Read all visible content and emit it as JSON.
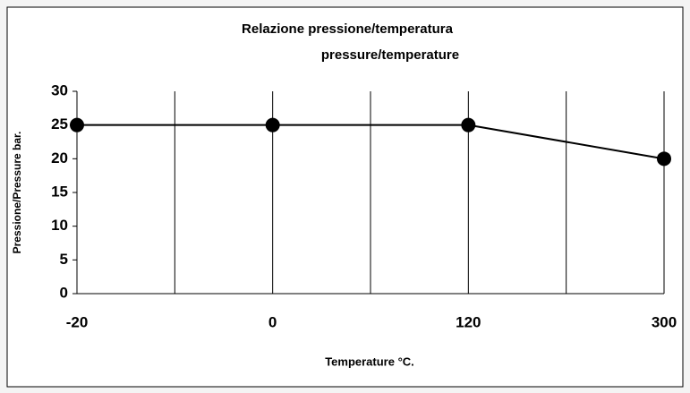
{
  "chart_data": {
    "type": "line",
    "title": "Relazione pressione/temperatura",
    "subtitle": "pressure/temperature",
    "x_label": "Temperature °C.",
    "y_label": "Pressione/Pressure bar.",
    "categories": [
      "-20",
      "0",
      "120",
      "300"
    ],
    "series": [
      {
        "name": "Pressione/Pressure",
        "color": "#000000",
        "values": [
          25,
          25,
          25,
          20
        ]
      }
    ],
    "ylim": [
      0,
      30
    ],
    "yticks": [
      0,
      5,
      10,
      15,
      20,
      25,
      30
    ],
    "grid": true,
    "legend": false
  }
}
